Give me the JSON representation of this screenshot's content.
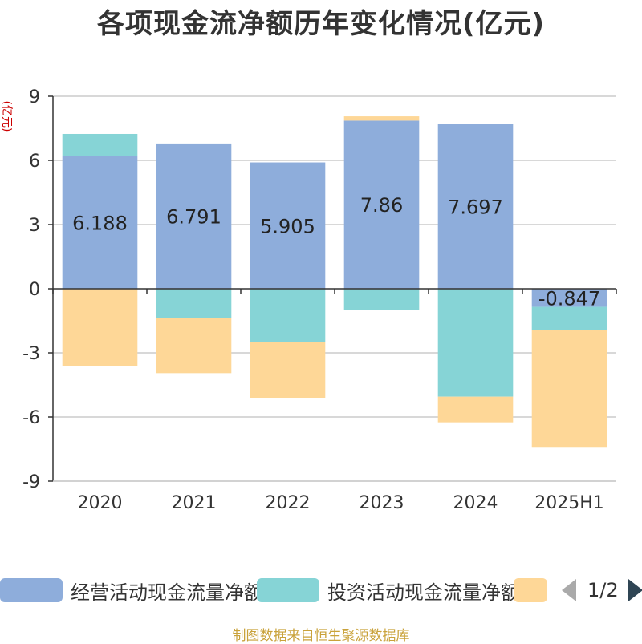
{
  "title": "各项现金流净额历年变化情况(亿元)",
  "source": "制图数据来自恒生聚源数据库",
  "chart_data": {
    "type": "bar",
    "stacked": true,
    "title": "各项现金流净额历年变化情况(亿元)",
    "ylabel": "(亿元)",
    "ylim": [
      -9,
      9
    ],
    "yticks": [
      -9,
      -6,
      -3,
      0,
      3,
      6,
      9
    ],
    "grid": true,
    "legend_position": "bottom",
    "categories": [
      "2020",
      "2021",
      "2022",
      "2023",
      "2024",
      "2025H1"
    ],
    "series": [
      {
        "name": "经营活动现金流量净额",
        "color": "#8eaddb",
        "values": [
          6.188,
          6.791,
          5.905,
          7.86,
          7.697,
          -0.847
        ],
        "labels": [
          "6.188",
          "6.791",
          "5.905",
          "7.86",
          "7.697",
          "-0.847"
        ]
      },
      {
        "name": "投资活动现金流量净额",
        "color": "#86d4d6",
        "values": [
          1.05,
          -1.35,
          -2.5,
          -0.98,
          -5.05,
          -1.1
        ]
      },
      {
        "name": "",
        "color": "#fed797",
        "values": [
          -3.6,
          -2.6,
          -2.6,
          0.2,
          -1.2,
          -5.45
        ]
      }
    ]
  },
  "legend": {
    "items": [
      {
        "label": "经营活动现金流量净额",
        "color": "#8eaddb"
      },
      {
        "label": "投资活动现金流量净额",
        "color": "#86d4d6"
      },
      {
        "label": "",
        "color": "#fed797"
      }
    ],
    "pager": "1/2"
  }
}
